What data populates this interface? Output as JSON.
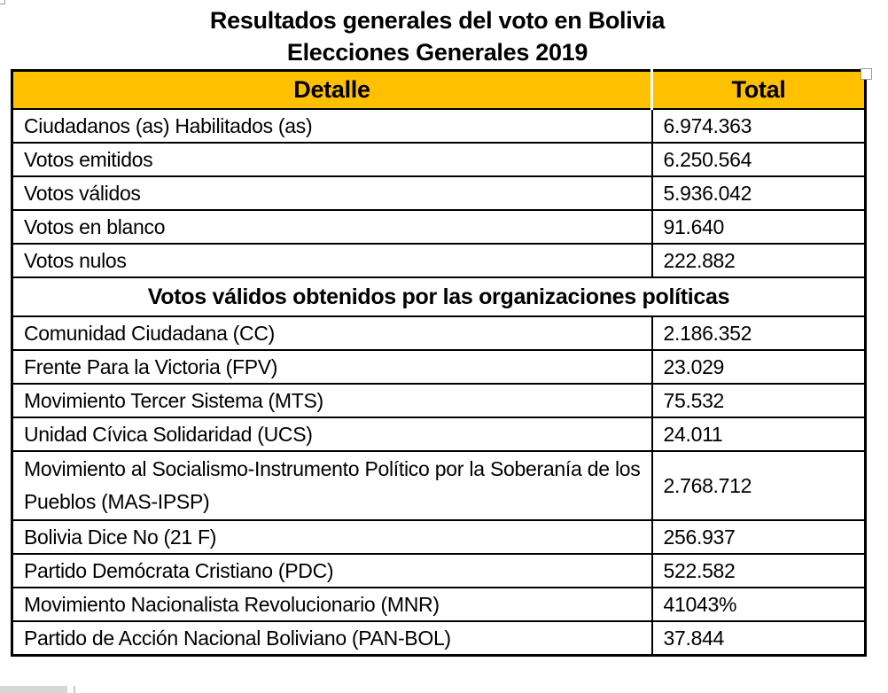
{
  "title": {
    "line1": "Resultados generales del voto en Bolivia",
    "line2": "Elecciones Generales 2019"
  },
  "table": {
    "headers": [
      "Detalle",
      "Total"
    ],
    "summary_rows": [
      {
        "label": "Ciudadanos (as) Habilitados (as)",
        "value": "6.974.363"
      },
      {
        "label": "Votos emitidos",
        "value": "6.250.564"
      },
      {
        "label": "Votos válidos",
        "value": "5.936.042"
      },
      {
        "label": "Votos en blanco",
        "value": "91.640"
      },
      {
        "label": "Votos nulos",
        "value": "222.882"
      }
    ],
    "section_header": "Votos válidos obtenidos por las organizaciones políticas",
    "party_rows": [
      {
        "label": "Comunidad Ciudadana (CC)",
        "value": "2.186.352"
      },
      {
        "label": "Frente Para la Victoria (FPV)",
        "value": "23.029"
      },
      {
        "label": "Movimiento Tercer Sistema (MTS)",
        "value": "75.532"
      },
      {
        "label": "Unidad Cívica Solidaridad (UCS)",
        "value": "24.011"
      },
      {
        "label": "Movimiento al Socialismo-Instrumento Político por la Soberanía de los Pueblos (MAS-IPSP)",
        "value": "2.768.712"
      },
      {
        "label": "Bolivia Dice No (21 F)",
        "value": "256.937"
      },
      {
        "label": "Partido Demócrata Cristiano (PDC)",
        "value": "522.582"
      },
      {
        "label": "Movimiento Nacionalista Revolucionario (MNR)",
        "value": "41043%"
      },
      {
        "label": "Partido de Acción Nacional Boliviano (PAN-BOL)",
        "value": "37.844"
      }
    ]
  },
  "colors": {
    "header_bg": "#FFC000",
    "border": "#000000",
    "text": "#000000"
  }
}
